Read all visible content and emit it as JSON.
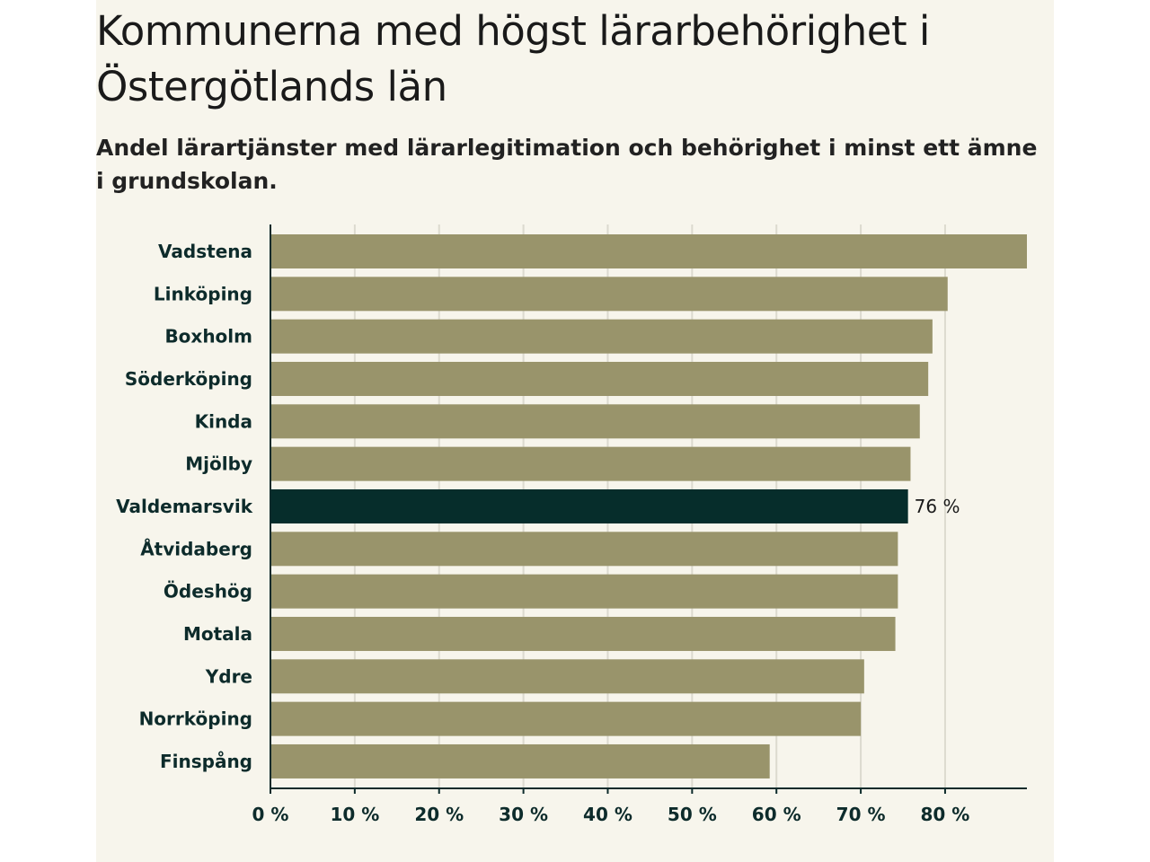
{
  "chart_data": {
    "type": "bar",
    "orientation": "horizontal",
    "title": "Kommunerna med högst lärarbehörighet i Östergötlands län",
    "subtitle": "Andel lärartjänster med lärarlegitimation och behörighet i minst ett ämne i grundskolan.",
    "categories": [
      "Vadstena",
      "Linköping",
      "Boxholm",
      "Söderköping",
      "Kinda",
      "Mjölby",
      "Valdemarsvik",
      "Åtvidaberg",
      "Ödeshög",
      "Motala",
      "Ydre",
      "Norrköping",
      "Finspång"
    ],
    "values": [
      89.7,
      80.3,
      78.5,
      78.0,
      77.0,
      75.9,
      75.6,
      74.4,
      74.4,
      74.1,
      70.4,
      70.0,
      59.2
    ],
    "highlight_index": 6,
    "highlight_label": "76 %",
    "xlim": [
      0,
      89.7
    ],
    "xticks": [
      0,
      10,
      20,
      30,
      40,
      50,
      60,
      70,
      80
    ],
    "xtick_labels": [
      "0 %",
      "10 %",
      "20 %",
      "30 %",
      "40 %",
      "50 %",
      "60 %",
      "70 %",
      "80 %"
    ],
    "grid": true,
    "colors": {
      "bar": "#99946b",
      "highlight": "#062d2b",
      "grid": "#dcdacf",
      "axis": "#0d2b2b"
    }
  }
}
